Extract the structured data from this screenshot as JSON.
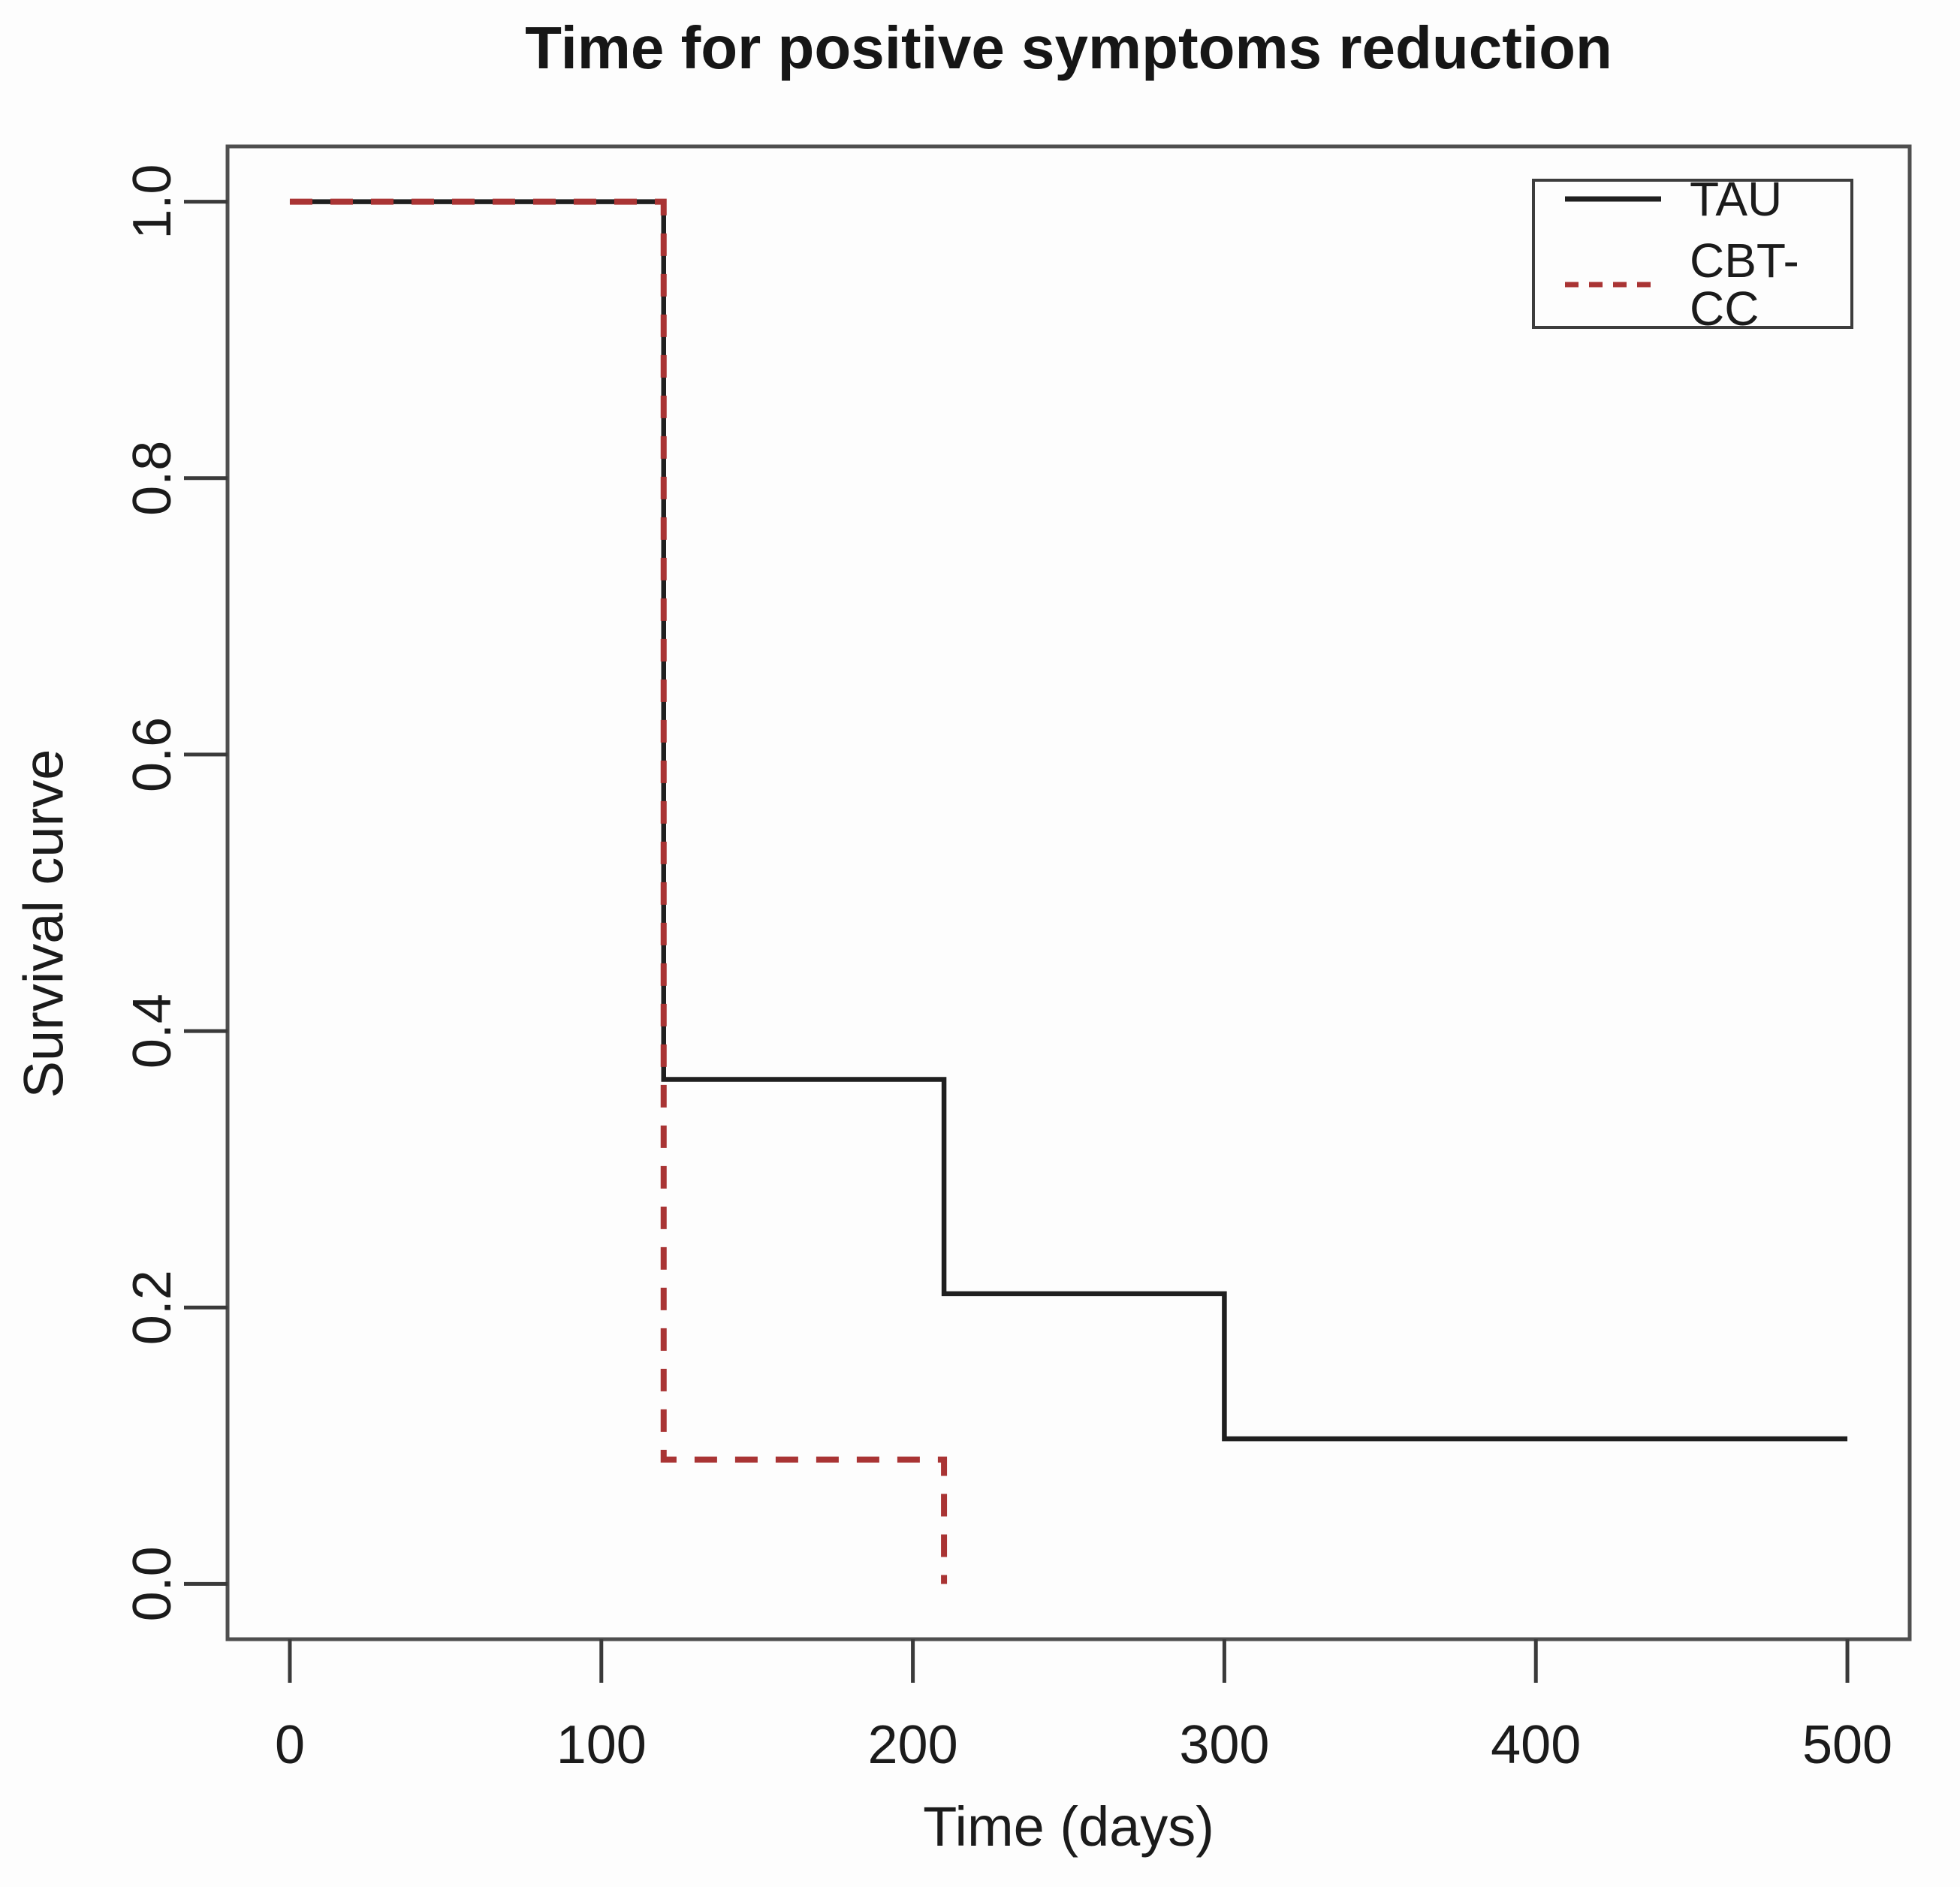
{
  "figure_title": "Time for positive symptoms reduction",
  "axes": {
    "x_label": "Time (days)",
    "y_label": "Survival curve"
  },
  "legend": {
    "position": "top-right",
    "items": [
      {
        "label": "TAU",
        "line_style": "solid",
        "color": "#1f1f1f"
      },
      {
        "label": "CBT-CC",
        "line_style": "dashed",
        "color": "#a93434"
      }
    ]
  },
  "chart_data": {
    "type": "line",
    "subtype": "kaplan-meier-step",
    "title": "Time for positive symptoms reduction",
    "xlabel": "Time (days)",
    "ylabel": "Survival curve",
    "xlim": [
      -20,
      520
    ],
    "ylim": [
      -0.04,
      1.04
    ],
    "x_ticks": [
      0,
      100,
      200,
      300,
      400,
      500
    ],
    "x_tick_labels": [
      "0",
      "100",
      "200",
      "300",
      "400",
      "500"
    ],
    "y_ticks": [
      0.0,
      0.2,
      0.4,
      0.6,
      0.8,
      1.0
    ],
    "y_tick_labels": [
      "0.0",
      "0.2",
      "0.4",
      "0.6",
      "0.8",
      "1.0"
    ],
    "grid": false,
    "legend_position": "top-right",
    "series": [
      {
        "name": "TAU",
        "color": "#1f1f1f",
        "line_style": "solid",
        "step": true,
        "points": [
          [
            0,
            1.0
          ],
          [
            120,
            1.0
          ],
          [
            120,
            0.365
          ],
          [
            210,
            0.365
          ],
          [
            210,
            0.21
          ],
          [
            300,
            0.21
          ],
          [
            300,
            0.105
          ],
          [
            500,
            0.105
          ]
        ]
      },
      {
        "name": "CBT-CC",
        "color": "#a93434",
        "line_style": "dashed",
        "step": true,
        "points": [
          [
            0,
            1.0
          ],
          [
            120,
            1.0
          ],
          [
            120,
            0.09
          ],
          [
            210,
            0.09
          ],
          [
            210,
            0.0
          ]
        ]
      }
    ]
  }
}
